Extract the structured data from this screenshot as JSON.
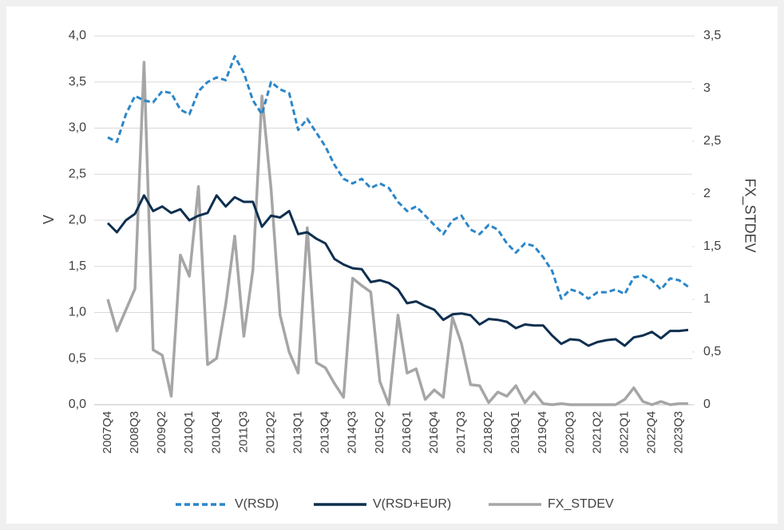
{
  "chart_data": {
    "type": "line",
    "categories": [
      "2007Q4",
      null,
      null,
      "2008Q3",
      null,
      null,
      "2009Q2",
      null,
      null,
      "2010Q1",
      null,
      null,
      "2010Q4",
      null,
      null,
      "2011Q3",
      null,
      null,
      "2012Q2",
      null,
      null,
      "2013Q1",
      null,
      null,
      "2013Q4",
      null,
      null,
      "2014Q3",
      null,
      null,
      "2015Q2",
      null,
      null,
      "2016Q1",
      null,
      null,
      "2016Q4",
      null,
      null,
      "2017Q3",
      null,
      null,
      "2018Q2",
      null,
      null,
      "2019Q1",
      null,
      null,
      "2019Q4",
      null,
      null,
      "2020Q3",
      null,
      null,
      "2021Q2",
      null,
      null,
      "2022Q1",
      null,
      null,
      "2022Q4",
      null,
      null,
      "2023Q3",
      null
    ],
    "ylabel": "V",
    "y2label": "FX_STDEV",
    "ylim": [
      0,
      4
    ],
    "yticks": [
      {
        "value": 0,
        "label": "0,0"
      },
      {
        "value": 0.5,
        "label": "0,5"
      },
      {
        "value": 1,
        "label": "1,0"
      },
      {
        "value": 1.5,
        "label": "1,5"
      },
      {
        "value": 2,
        "label": "2,0"
      },
      {
        "value": 2.5,
        "label": "2,5"
      },
      {
        "value": 3,
        "label": "3,0"
      },
      {
        "value": 3.5,
        "label": "3,5"
      },
      {
        "value": 4,
        "label": "4,0"
      }
    ],
    "y2lim": [
      0,
      3.5
    ],
    "y2ticks": [
      0,
      {
        "value": 0.5,
        "label": "0,5"
      },
      1,
      {
        "value": 1.5,
        "label": "1,5"
      },
      2,
      {
        "value": 2.5,
        "label": "2,5"
      },
      3,
      {
        "value": 3.5,
        "label": "3,5"
      }
    ],
    "grid": true,
    "legend": "bottom",
    "series": [
      {
        "name": "V(RSD)",
        "color": "#2b86c9",
        "dash": true,
        "values": [
          2.9,
          2.85,
          3.15,
          3.35,
          3.3,
          3.28,
          3.4,
          3.38,
          3.2,
          3.15,
          3.4,
          3.5,
          3.55,
          3.52,
          3.78,
          3.6,
          3.3,
          3.15,
          3.5,
          3.42,
          3.38,
          2.98,
          3.1,
          2.95,
          2.8,
          2.6,
          2.45,
          2.4,
          2.45,
          2.35,
          2.4,
          2.35,
          2.2,
          2.1,
          2.15,
          2.05,
          1.95,
          1.85,
          2.0,
          2.05,
          1.9,
          1.85,
          1.95,
          1.9,
          1.75,
          1.65,
          1.75,
          1.72,
          1.6,
          1.45,
          1.15,
          1.25,
          1.22,
          1.15,
          1.22,
          1.22,
          1.25,
          1.2,
          1.38,
          1.4,
          1.35,
          1.25,
          1.37,
          1.35,
          1.28
        ]
      },
      {
        "name": "V(RSD+EUR)",
        "color": "#0e2f4f",
        "values": [
          1.97,
          1.87,
          2.0,
          2.07,
          2.27,
          2.1,
          2.15,
          2.08,
          2.12,
          2.0,
          2.05,
          2.08,
          2.27,
          2.15,
          2.25,
          2.2,
          2.2,
          1.93,
          2.05,
          2.03,
          2.1,
          1.85,
          1.87,
          1.8,
          1.75,
          1.58,
          1.52,
          1.48,
          1.47,
          1.33,
          1.35,
          1.32,
          1.25,
          1.1,
          1.12,
          1.07,
          1.03,
          0.92,
          0.98,
          0.99,
          0.97,
          0.87,
          0.93,
          0.92,
          0.9,
          0.83,
          0.87,
          0.86,
          0.86,
          0.75,
          0.66,
          0.71,
          0.7,
          0.64,
          0.68,
          0.7,
          0.71,
          0.64,
          0.73,
          0.75,
          0.79,
          0.72,
          0.8,
          0.8,
          0.81
        ]
      },
      {
        "name": "FX_STDEV",
        "color": "#a6a6a6",
        "axis": "y2",
        "values": [
          1.0,
          0.7,
          0.9,
          1.1,
          3.25,
          0.52,
          0.47,
          0.08,
          1.42,
          1.22,
          2.07,
          0.38,
          0.44,
          0.95,
          1.6,
          0.65,
          1.28,
          2.93,
          2.05,
          0.85,
          0.5,
          0.3,
          1.68,
          0.4,
          0.35,
          0.2,
          0.07,
          1.2,
          1.13,
          1.07,
          0.22,
          0.0,
          0.85,
          0.3,
          0.34,
          0.05,
          0.14,
          0.07,
          0.83,
          0.58,
          0.19,
          0.18,
          0.02,
          0.12,
          0.08,
          0.18,
          0.02,
          0.12,
          0.01,
          0.0,
          0.01,
          0.0,
          0.0,
          0.0,
          0.0,
          0.0,
          0.0,
          0.05,
          0.16,
          0.03,
          0.0,
          0.03,
          0.0,
          0.01,
          0.01
        ]
      }
    ]
  }
}
